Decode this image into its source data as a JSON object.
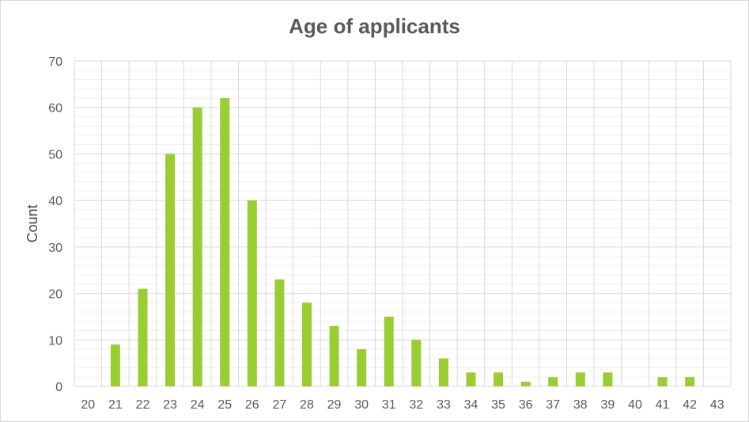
{
  "chart_data": {
    "type": "bar",
    "title": "Age of applicants",
    "xlabel": "",
    "ylabel": "Count",
    "ylim": [
      0,
      70
    ],
    "yticks": [
      0,
      10,
      20,
      30,
      40,
      50,
      60,
      70
    ],
    "grid": true,
    "legend": "none",
    "bar_color": "#9acd32",
    "categories": [
      "20",
      "21",
      "22",
      "23",
      "24",
      "25",
      "26",
      "27",
      "28",
      "29",
      "30",
      "31",
      "32",
      "33",
      "34",
      "35",
      "36",
      "37",
      "38",
      "39",
      "40",
      "41",
      "42",
      "43"
    ],
    "values": [
      0,
      9,
      21,
      50,
      60,
      62,
      40,
      23,
      18,
      13,
      8,
      15,
      10,
      6,
      3,
      3,
      1,
      2,
      3,
      3,
      0,
      2,
      2,
      0
    ]
  }
}
